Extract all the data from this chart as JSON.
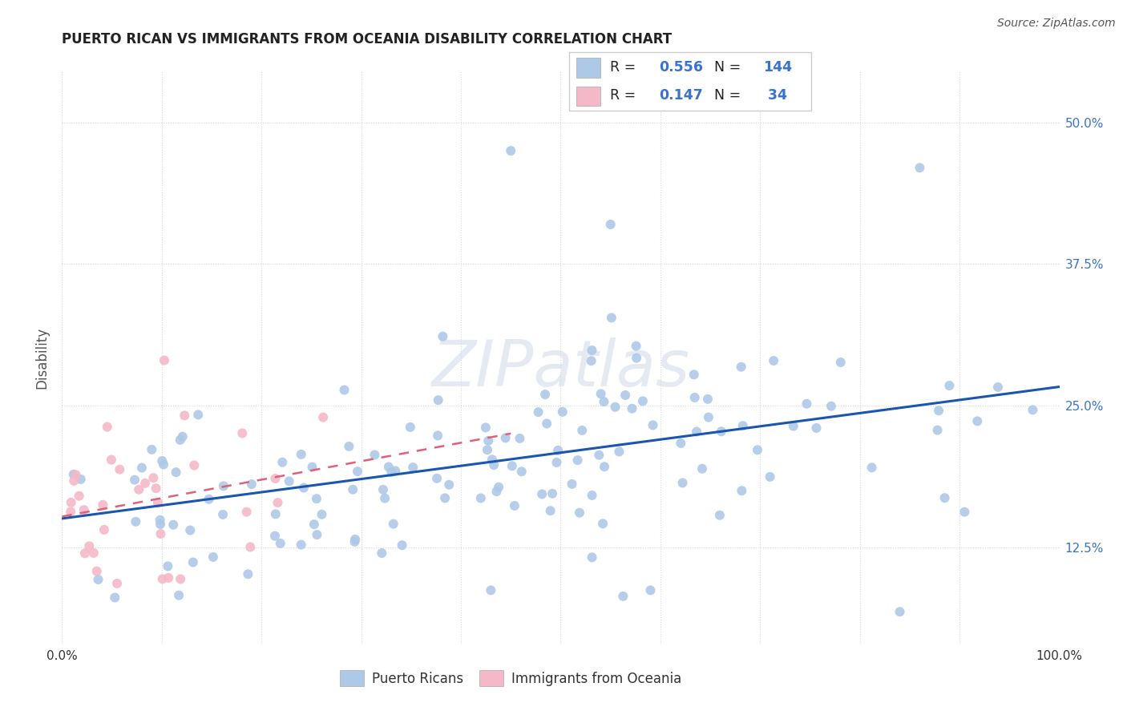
{
  "title": "PUERTO RICAN VS IMMIGRANTS FROM OCEANIA DISABILITY CORRELATION CHART",
  "source": "Source: ZipAtlas.com",
  "ylabel": "Disability",
  "ytick_vals": [
    0.125,
    0.25,
    0.375,
    0.5
  ],
  "ytick_labels": [
    "12.5%",
    "25.0%",
    "37.5%",
    "50.0%"
  ],
  "xlim": [
    0.0,
    1.0
  ],
  "ylim": [
    0.04,
    0.545
  ],
  "blue_R": 0.556,
  "blue_N": 144,
  "pink_R": 0.147,
  "pink_N": 34,
  "blue_color": "#aec9e8",
  "pink_color": "#f5b8c8",
  "blue_line_color": "#1a56b0",
  "pink_line_color": "#e0607a",
  "legend_blue_label": "Puerto Ricans",
  "legend_pink_label": "Immigrants from Oceania",
  "watermark": "ZIPatlas",
  "grid_color": "#cccccc",
  "title_fontsize": 12,
  "source_fontsize": 10,
  "tick_fontsize": 11,
  "right_tick_color": "#3a72cc"
}
